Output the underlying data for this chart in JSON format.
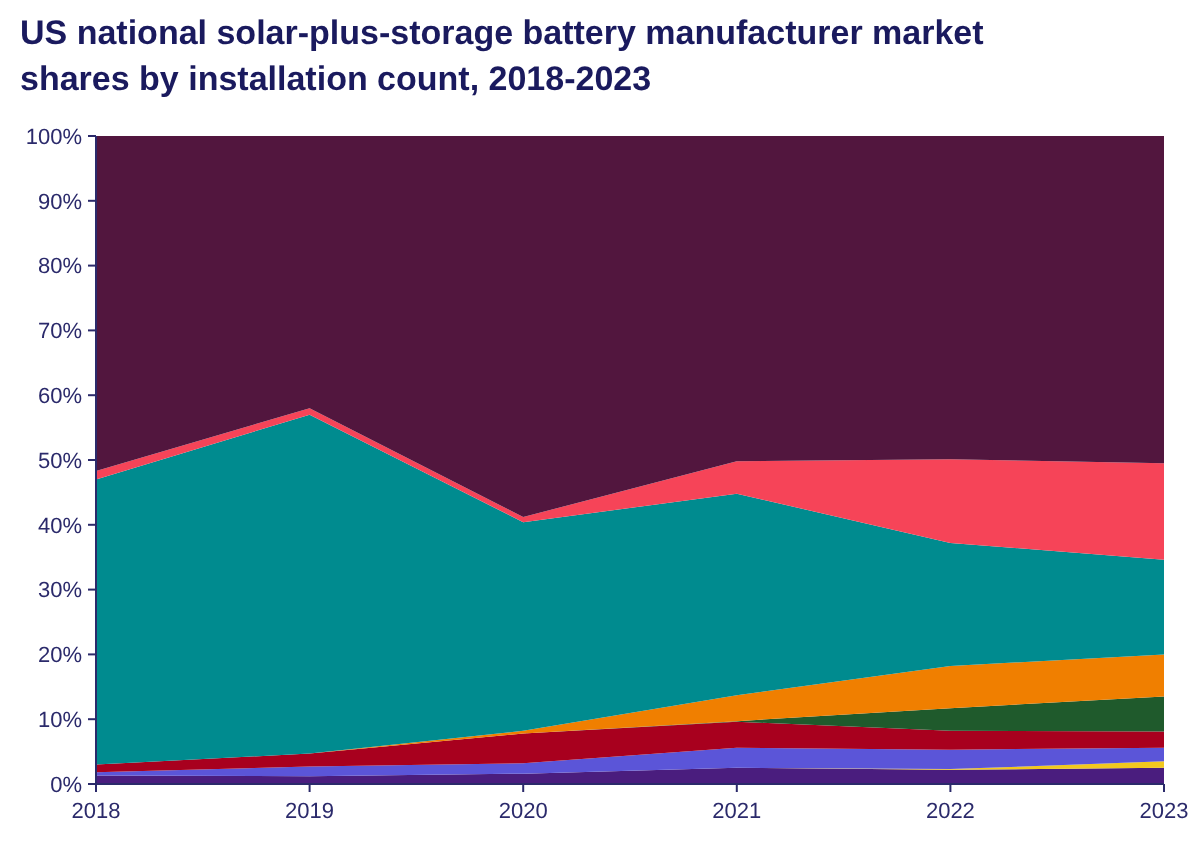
{
  "chart_data": {
    "type": "area",
    "stacked": true,
    "title": "US national solar-plus-storage battery manufacturer market shares by installation count, 2018-2023",
    "x": [
      2018,
      2019,
      2020,
      2021,
      2022,
      2023
    ],
    "xlim": [
      2018,
      2023
    ],
    "xticks": [
      2018,
      2019,
      2020,
      2021,
      2022,
      2023
    ],
    "ylim": [
      0,
      100
    ],
    "yticks": [
      {
        "value": 0,
        "label": "0%"
      },
      {
        "value": 10,
        "label": "10%"
      },
      {
        "value": 20,
        "label": "20%"
      },
      {
        "value": 30,
        "label": "30%"
      },
      {
        "value": 40,
        "label": "40%"
      },
      {
        "value": 50,
        "label": "50%"
      },
      {
        "value": 60,
        "label": "60%"
      },
      {
        "value": 70,
        "label": "70%"
      },
      {
        "value": 80,
        "label": "80%"
      },
      {
        "value": 90,
        "label": "90%"
      },
      {
        "value": 100,
        "label": "100%"
      }
    ],
    "grid": false,
    "series": [
      {
        "color": "#4a1d7e",
        "values": [
          1.3,
          1.2,
          1.6,
          2.5,
          2.2,
          2.5
        ]
      },
      {
        "color": "#f2c81e",
        "values": [
          0,
          0,
          0,
          0,
          0.1,
          1.0
        ]
      },
      {
        "color": "#5b55d8",
        "values": [
          0.5,
          1.5,
          1.6,
          3.1,
          3.0,
          2.1
        ]
      },
      {
        "color": "#a8001e",
        "values": [
          1.2,
          2.0,
          4.6,
          4.0,
          2.9,
          2.5
        ]
      },
      {
        "color": "#1f5a2c",
        "values": [
          0,
          0,
          0,
          0.1,
          3.5,
          5.4
        ]
      },
      {
        "color": "#f07f00",
        "values": [
          0,
          0,
          0.4,
          4.0,
          6.5,
          6.5
        ]
      },
      {
        "color": "#008b8f",
        "values": [
          44,
          52.3,
          32.2,
          31.1,
          19,
          14.6
        ]
      },
      {
        "color": "#f64458",
        "values": [
          1.3,
          1.0,
          0.8,
          5.0,
          12.9,
          14.9
        ]
      },
      {
        "color": "#52163e",
        "values": [
          51.7,
          42,
          58.8,
          50.2,
          49.9,
          50.5
        ]
      }
    ]
  }
}
